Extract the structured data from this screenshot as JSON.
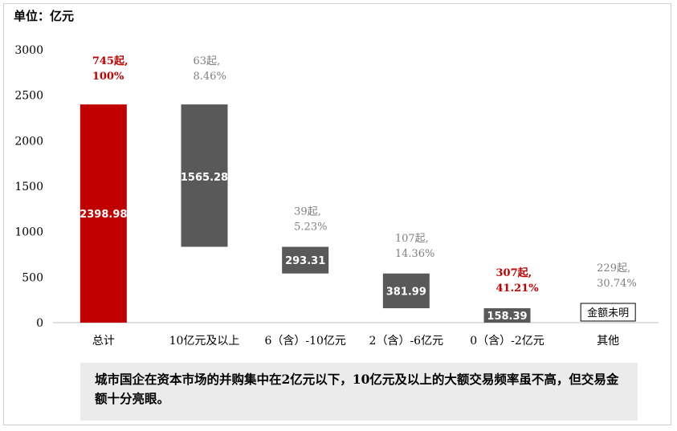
{
  "unit_label": "单位：亿元",
  "note": "城市国企在资本市场的并购集中在2亿元以下，10亿元及以上的大额交易频率虽不高，但交易金额十分亮眼。",
  "colors": {
    "total": "#c00000",
    "step": "#595959",
    "highlight_text": "#c00000",
    "muted_text": "#7f7f7f"
  },
  "chart_data": {
    "type": "bar",
    "subtype": "waterfall",
    "ylim": [
      0,
      3000
    ],
    "yticks": [
      "0",
      "500",
      "1000",
      "1500",
      "2000",
      "2500",
      "3000"
    ],
    "categories": [
      "总计",
      "10亿元及以上",
      "6（含）-10亿元",
      "2（含）-6亿元",
      "0（含）-2亿元",
      "其他"
    ],
    "bars": [
      {
        "value": 2398.98,
        "base": 0,
        "value_label": "2398.98",
        "count_label": "745起,",
        "pct_label": "100%",
        "highlight": true,
        "is_total": true
      },
      {
        "value": 1565.28,
        "base": 833.7,
        "value_label": "1565.28",
        "count_label": "63起,",
        "pct_label": "8.46%",
        "highlight": false,
        "is_total": false
      },
      {
        "value": 293.31,
        "base": 540.39,
        "value_label": "293.31",
        "count_label": "39起,",
        "pct_label": "5.23%",
        "highlight": false,
        "is_total": false
      },
      {
        "value": 381.99,
        "base": 158.4,
        "value_label": "381.99",
        "count_label": "107起,",
        "pct_label": "14.36%",
        "highlight": false,
        "is_total": false
      },
      {
        "value": 158.39,
        "base": 0,
        "value_label": "158.39",
        "count_label": "307起,",
        "pct_label": "41.21%",
        "highlight": true,
        "is_total": false
      },
      {
        "value": null,
        "base": 0,
        "value_label": "金额未明",
        "count_label": "229起,",
        "pct_label": "30.74%",
        "highlight": false,
        "is_total": false,
        "boxed_label": true
      }
    ]
  }
}
